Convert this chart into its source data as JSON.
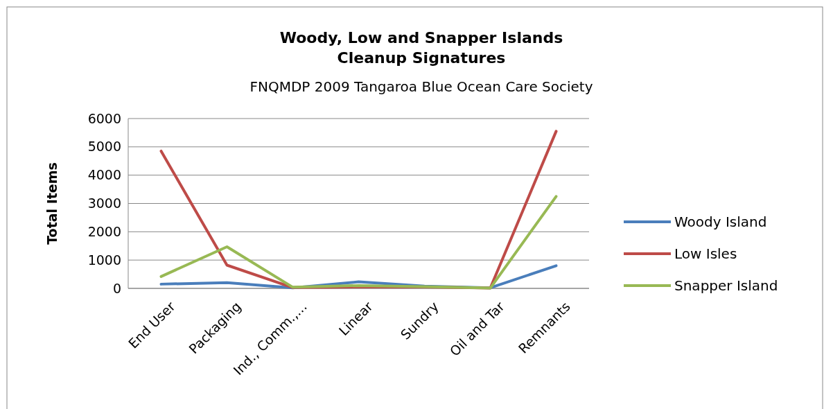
{
  "chart_data": {
    "type": "line",
    "title": "Woody, Low and Snapper Islands\nCleanup Signatures",
    "subtitle": "FNQMDP 2009 Tangaroa Blue Ocean Care Society",
    "ylabel": "Total Items",
    "categories": [
      "End User",
      "Packaging",
      "Ind., Comm.,...",
      "Linear",
      "Sundry",
      "Oil and Tar",
      "Remnants"
    ],
    "series": [
      {
        "name": "Woody Island",
        "color": "#4a7ebb",
        "values": [
          150,
          200,
          20,
          230,
          80,
          20,
          800
        ]
      },
      {
        "name": "Low Isles",
        "color": "#be4b48",
        "values": [
          4850,
          820,
          30,
          50,
          50,
          10,
          5550
        ]
      },
      {
        "name": "Snapper Island",
        "color": "#98b954",
        "values": [
          420,
          1470,
          40,
          100,
          60,
          10,
          3250
        ]
      }
    ],
    "ylim": [
      0,
      6000
    ],
    "yticks": [
      0,
      1000,
      2000,
      3000,
      4000,
      5000,
      6000
    ],
    "grid": "y",
    "legend": "right",
    "marker": "none",
    "line_style": "solid"
  }
}
